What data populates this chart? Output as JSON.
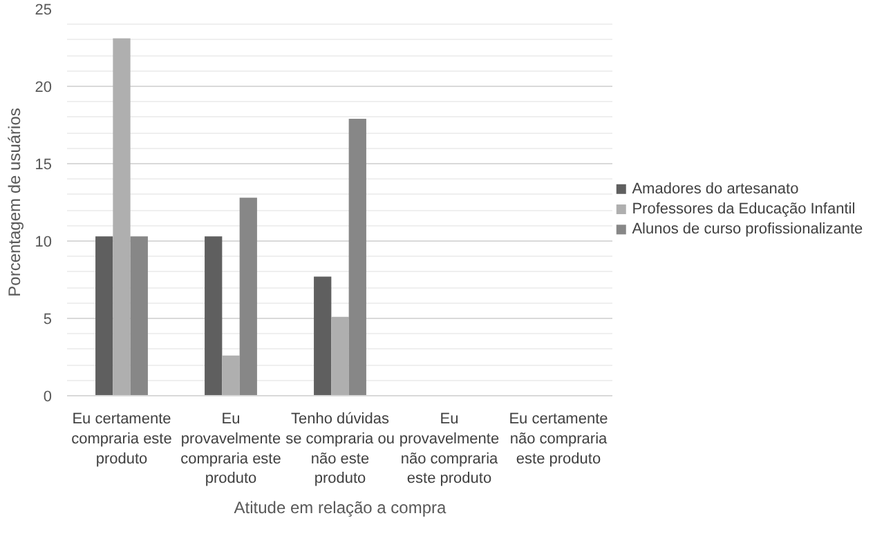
{
  "chart_data": {
    "type": "bar",
    "xlabel": "Atitude em relação a compra",
    "ylabel": "Porcentagem de usuários",
    "categories": [
      "Eu certamente compraria este produto",
      "Eu provavelmente compraria este produto",
      "Tenho dúvidas se compraria ou não este produto",
      "Eu provavelmente não compraria este produto",
      "Eu certamente não compraria este produto"
    ],
    "series": [
      {
        "name": "Amadores do artesanato",
        "color": "#5f5f5f",
        "values": [
          10.3,
          10.3,
          7.7,
          0,
          0
        ]
      },
      {
        "name": "Professores da Educação Infantil",
        "color": "#afafaf",
        "values": [
          23.1,
          2.6,
          5.1,
          0,
          0
        ]
      },
      {
        "name": "Alunos de curso profissionalizante",
        "color": "#878787",
        "values": [
          10.3,
          12.8,
          17.9,
          0,
          0
        ]
      }
    ],
    "ylim": [
      0,
      25
    ],
    "yticks": [
      0,
      5,
      10,
      15,
      20,
      25
    ],
    "grid": "y",
    "legend": "right"
  }
}
